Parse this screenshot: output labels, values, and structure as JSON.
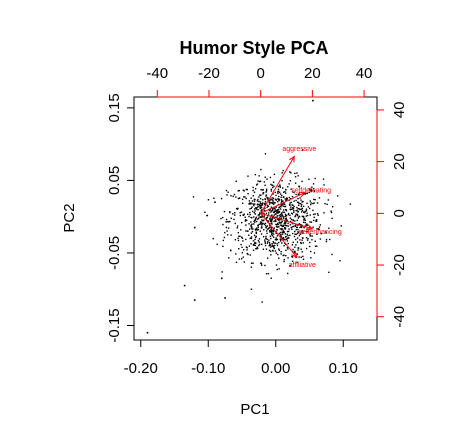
{
  "chart_data": {
    "type": "scatter",
    "title": "Humor Style PCA",
    "xlabel": "PC1",
    "ylabel": "PC2",
    "xlim": [
      -0.21,
      0.15
    ],
    "ylim": [
      -0.17,
      0.165
    ],
    "x_ticks": [
      "-0.20",
      "-0.10",
      "0.00",
      "0.10"
    ],
    "y_ticks": [
      "-0.15",
      "-0.05",
      "0.05",
      "0.15"
    ],
    "top_ticks": [
      "-40",
      "-20",
      "0",
      "20",
      "40"
    ],
    "right_ticks": [
      "-40",
      "-20",
      "0",
      "20",
      "40"
    ],
    "loadings_range": [
      -49,
      45
    ],
    "accent_color": "#ff0000",
    "point_color": "#000000",
    "outliers": [
      {
        "x": 0.055,
        "y": 0.16
      },
      {
        "x": -0.19,
        "y": -0.16
      },
      {
        "x": -0.135,
        "y": -0.095
      },
      {
        "x": -0.12,
        "y": -0.115
      },
      {
        "x": -0.075,
        "y": -0.112
      },
      {
        "x": -0.08,
        "y": -0.085
      },
      {
        "x": -0.12,
        "y": -0.015
      },
      {
        "x": -0.09,
        "y": 0.02
      },
      {
        "x": 0.04,
        "y": 0.092
      }
    ],
    "cloud": {
      "n": 1000,
      "center": [
        0.0,
        -0.005
      ],
      "sd": [
        0.035,
        0.028
      ]
    },
    "loadings": [
      {
        "name": "aggressive",
        "x": 13,
        "y": 22
      },
      {
        "name": "selfdefeating",
        "x": 17,
        "y": 8
      },
      {
        "name": "selfenhancing",
        "x": 20,
        "y": -6
      },
      {
        "name": "affiliative",
        "x": 14,
        "y": -17
      }
    ]
  }
}
